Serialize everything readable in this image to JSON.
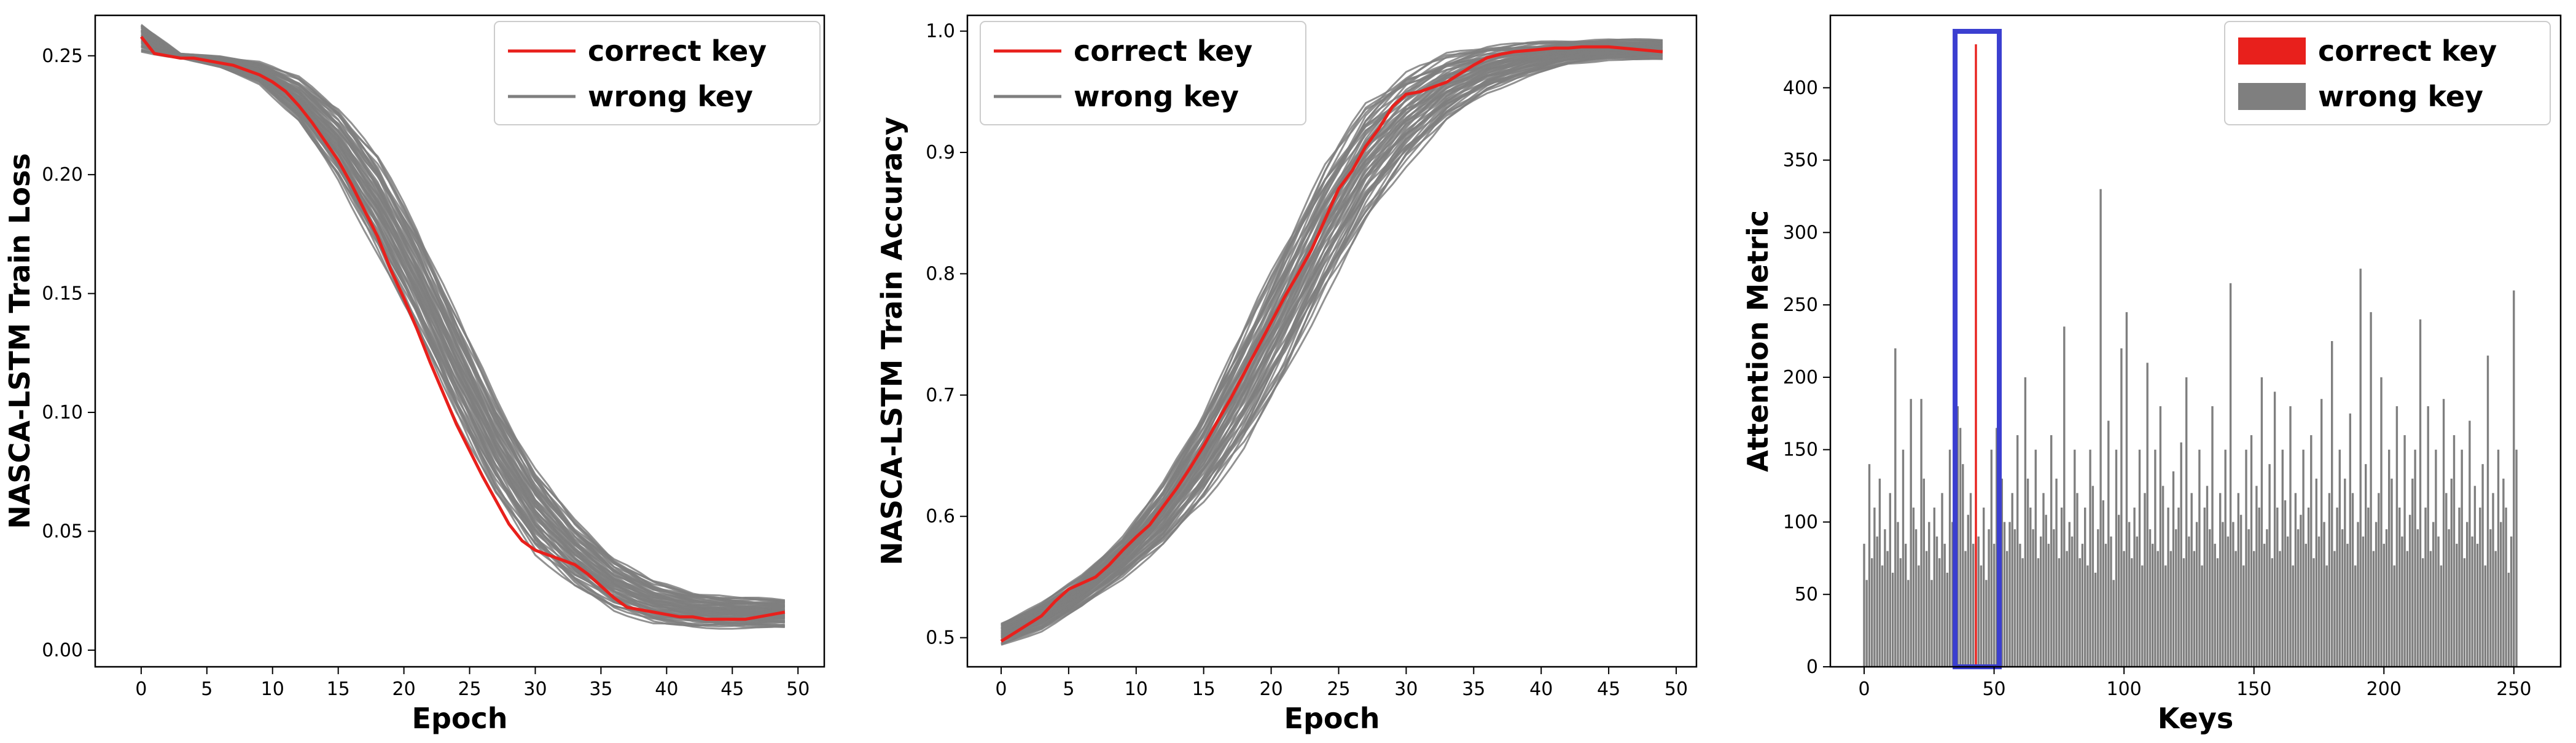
{
  "colors": {
    "correct": "#e8201c",
    "wrong": "#7f7f7f",
    "highlight": "#3b3fd0"
  },
  "chart_data": [
    {
      "type": "line",
      "xlabel": "Epoch",
      "ylabel": "NASCA-LSTM Train Loss",
      "xlim": [
        -3.5,
        52
      ],
      "ylim": [
        -0.007,
        0.267
      ],
      "xticks": [
        0,
        5,
        10,
        15,
        20,
        25,
        30,
        35,
        40,
        45,
        50
      ],
      "xtick_labels": [
        "0",
        "5",
        "10",
        "15",
        "20",
        "25",
        "30",
        "35",
        "40",
        "45",
        "50"
      ],
      "yticks": [
        0.0,
        0.05,
        0.1,
        0.15,
        0.2,
        0.25
      ],
      "ytick_labels": [
        "0.00",
        "0.05",
        "0.10",
        "0.15",
        "0.20",
        "0.25"
      ],
      "legend": {
        "placement": "top-right",
        "entries": [
          "correct key",
          "wrong key"
        ]
      },
      "wrong_key_band": {
        "name": "wrong key",
        "x": [
          0,
          3,
          6,
          9,
          12,
          15,
          18,
          21,
          24,
          27,
          30,
          33,
          36,
          39,
          42,
          45,
          49
        ],
        "low": [
          0.251,
          0.249,
          0.245,
          0.238,
          0.222,
          0.197,
          0.166,
          0.132,
          0.096,
          0.064,
          0.04,
          0.026,
          0.016,
          0.011,
          0.009,
          0.009,
          0.009
        ],
        "high": [
          0.264,
          0.251,
          0.25,
          0.248,
          0.242,
          0.23,
          0.21,
          0.18,
          0.144,
          0.108,
          0.078,
          0.056,
          0.04,
          0.03,
          0.025,
          0.023,
          0.022
        ]
      },
      "series": [
        {
          "name": "correct key",
          "x": [
            0,
            1,
            2,
            3,
            4,
            5,
            6,
            7,
            8,
            9,
            10,
            11,
            12,
            13,
            14,
            15,
            16,
            17,
            18,
            19,
            20,
            21,
            22,
            23,
            24,
            25,
            26,
            27,
            28,
            29,
            30,
            31,
            32,
            33,
            34,
            35,
            36,
            37,
            38,
            39,
            40,
            41,
            42,
            43,
            44,
            45,
            46,
            47,
            48,
            49
          ],
          "y": [
            0.258,
            0.251,
            0.25,
            0.249,
            0.249,
            0.248,
            0.247,
            0.246,
            0.244,
            0.242,
            0.239,
            0.235,
            0.229,
            0.222,
            0.214,
            0.206,
            0.196,
            0.185,
            0.174,
            0.16,
            0.148,
            0.135,
            0.121,
            0.108,
            0.095,
            0.084,
            0.073,
            0.063,
            0.053,
            0.046,
            0.042,
            0.04,
            0.038,
            0.036,
            0.032,
            0.027,
            0.022,
            0.018,
            0.017,
            0.016,
            0.015,
            0.014,
            0.014,
            0.013,
            0.013,
            0.013,
            0.013,
            0.014,
            0.015,
            0.016
          ]
        }
      ]
    },
    {
      "type": "line",
      "xlabel": "Epoch",
      "ylabel": "NASCA-LSTM Train Accuracy",
      "xlim": [
        -2.5,
        51.5
      ],
      "ylim": [
        0.476,
        1.013
      ],
      "xticks": [
        0,
        5,
        10,
        15,
        20,
        25,
        30,
        35,
        40,
        45,
        50
      ],
      "xtick_labels": [
        "0",
        "5",
        "10",
        "15",
        "20",
        "25",
        "30",
        "35",
        "40",
        "45",
        "50"
      ],
      "yticks": [
        0.5,
        0.6,
        0.7,
        0.8,
        0.9,
        1.0
      ],
      "ytick_labels": [
        "0.5",
        "0.6",
        "0.7",
        "0.8",
        "0.9",
        "1.0"
      ],
      "legend": {
        "placement": "top-left",
        "entries": [
          "correct key",
          "wrong key"
        ]
      },
      "wrong_key_band": {
        "name": "wrong key",
        "x": [
          0,
          3,
          6,
          9,
          12,
          15,
          18,
          21,
          24,
          27,
          30,
          33,
          36,
          39,
          42,
          45,
          49
        ],
        "low": [
          0.493,
          0.505,
          0.525,
          0.548,
          0.575,
          0.61,
          0.655,
          0.712,
          0.78,
          0.84,
          0.888,
          0.925,
          0.948,
          0.962,
          0.972,
          0.976,
          0.976
        ],
        "high": [
          0.513,
          0.53,
          0.553,
          0.585,
          0.63,
          0.69,
          0.76,
          0.83,
          0.895,
          0.945,
          0.97,
          0.984,
          0.99,
          0.992,
          0.993,
          0.994,
          0.994
        ]
      },
      "series": [
        {
          "name": "correct key",
          "x": [
            0,
            1,
            2,
            3,
            4,
            5,
            6,
            7,
            8,
            9,
            10,
            11,
            12,
            13,
            14,
            15,
            16,
            17,
            18,
            19,
            20,
            21,
            22,
            23,
            24,
            25,
            26,
            27,
            28,
            29,
            30,
            31,
            32,
            33,
            34,
            35,
            36,
            37,
            38,
            39,
            40,
            41,
            42,
            43,
            44,
            45,
            46,
            47,
            48,
            49
          ],
          "y": [
            0.497,
            0.504,
            0.511,
            0.518,
            0.53,
            0.54,
            0.545,
            0.55,
            0.56,
            0.572,
            0.583,
            0.593,
            0.608,
            0.623,
            0.64,
            0.658,
            0.678,
            0.697,
            0.718,
            0.739,
            0.76,
            0.781,
            0.8,
            0.82,
            0.845,
            0.87,
            0.885,
            0.905,
            0.92,
            0.938,
            0.948,
            0.95,
            0.954,
            0.958,
            0.965,
            0.972,
            0.978,
            0.981,
            0.983,
            0.984,
            0.985,
            0.986,
            0.986,
            0.987,
            0.987,
            0.987,
            0.986,
            0.985,
            0.984,
            0.983
          ]
        }
      ]
    },
    {
      "type": "bar",
      "xlabel": "Keys",
      "ylabel": "Attention Metric",
      "xlim": [
        -13,
        268
      ],
      "ylim": [
        0,
        450
      ],
      "xticks": [
        0,
        50,
        100,
        150,
        200,
        250
      ],
      "xtick_labels": [
        "0",
        "50",
        "100",
        "150",
        "200",
        "250"
      ],
      "yticks": [
        0,
        50,
        100,
        150,
        200,
        250,
        300,
        350,
        400
      ],
      "ytick_labels": [
        "0",
        "50",
        "100",
        "150",
        "200",
        "250",
        "300",
        "350",
        "400"
      ],
      "legend": {
        "placement": "top-right",
        "entries": [
          "correct key",
          "wrong key"
        ]
      },
      "correct_key_index": 43,
      "highlight_box_keys": [
        35,
        52
      ],
      "series": [
        {
          "name": "wrong key",
          "keys_from": 0,
          "values": [
            85,
            60,
            140,
            75,
            110,
            90,
            130,
            70,
            95,
            80,
            120,
            65,
            220,
            100,
            75,
            150,
            85,
            60,
            185,
            110,
            95,
            70,
            185,
            130,
            80,
            100,
            60,
            110,
            90,
            75,
            120,
            85,
            65,
            150,
            100,
            115,
            180,
            165,
            140,
            80,
            105,
            120,
            85,
            430,
            90,
            70,
            110,
            60,
            95,
            150,
            85,
            165,
            140,
            130,
            100,
            80,
            100,
            120,
            95,
            160,
            85,
            75,
            200,
            130,
            110,
            95,
            150,
            75,
            90,
            120,
            105,
            85,
            160,
            95,
            130,
            75,
            110,
            235,
            80,
            100,
            90,
            150,
            120,
            75,
            85,
            110,
            70,
            150,
            125,
            65,
            95,
            330,
            115,
            85,
            170,
            90,
            60,
            150,
            105,
            220,
            80,
            245,
            100,
            75,
            110,
            90,
            150,
            70,
            120,
            210,
            95,
            85,
            150,
            80,
            180,
            125,
            70,
            110,
            80,
            135,
            95,
            110,
            155,
            75,
            200,
            90,
            120,
            80,
            100,
            150,
            70,
            110,
            125,
            95,
            180,
            85,
            75,
            120,
            100,
            150,
            90,
            265,
            100,
            80,
            120,
            105,
            70,
            150,
            95,
            160,
            80,
            125,
            110,
            200,
            85,
            95,
            140,
            75,
            190,
            110,
            80,
            150,
            115,
            90,
            180,
            70,
            120,
            95,
            105,
            150,
            85,
            110,
            160,
            75,
            130,
            90,
            185,
            100,
            70,
            120,
            225,
            80,
            110,
            150,
            95,
            130,
            85,
            175,
            120,
            70,
            100,
            275,
            90,
            140,
            110,
            245,
            80,
            100,
            120,
            200,
            85,
            95,
            150,
            130,
            70,
            180,
            110,
            90,
            160,
            80,
            105,
            130,
            150,
            95,
            240,
            75,
            110,
            180,
            80,
            100,
            150,
            90,
            70,
            185,
            120,
            95,
            130,
            160,
            85,
            110,
            150,
            75,
            100,
            170,
            90,
            125,
            85,
            110,
            140,
            70,
            215,
            95,
            120,
            80,
            150,
            100,
            130,
            110,
            65,
            90,
            260,
            150
          ]
        },
        {
          "name": "correct key",
          "key": 43,
          "value": 430
        }
      ]
    }
  ]
}
